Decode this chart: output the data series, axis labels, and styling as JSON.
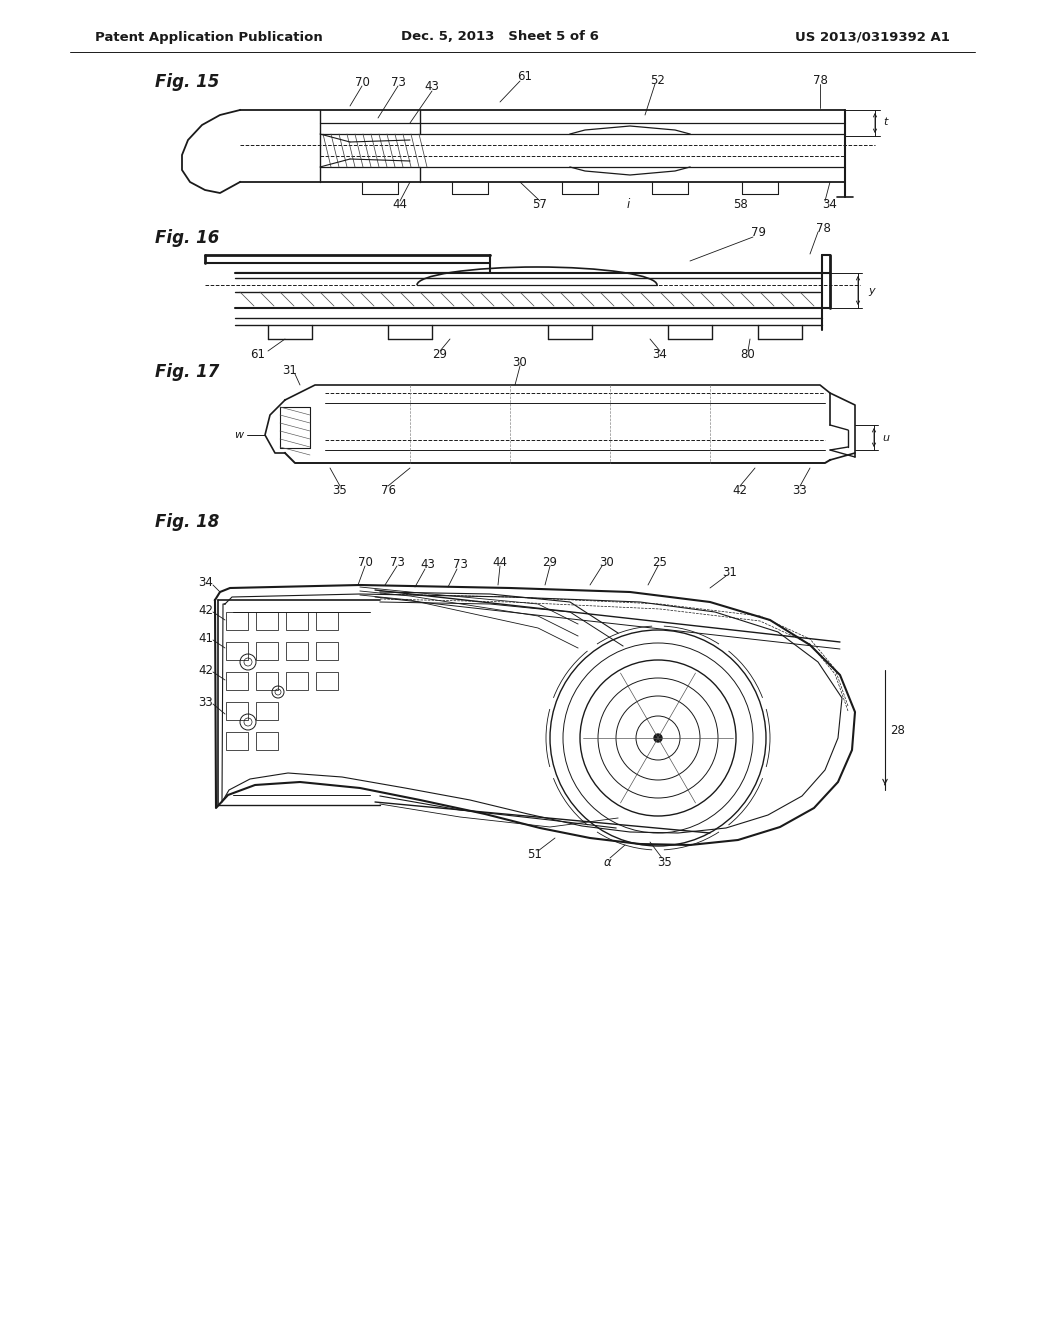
{
  "bg_color": "#ffffff",
  "header_left": "Patent Application Publication",
  "header_center": "Dec. 5, 2013   Sheet 5 of 6",
  "header_right": "US 2013/0319392 A1",
  "fig15_label": "Fig. 15",
  "fig16_label": "Fig. 16",
  "fig17_label": "Fig. 17",
  "fig18_label": "Fig. 18",
  "line_color": "#1a1a1a",
  "hatch_color": "#333333",
  "text_color": "#1a1a1a",
  "font_size_header": 9.5,
  "font_size_fig": 12,
  "font_size_ref": 8.5
}
